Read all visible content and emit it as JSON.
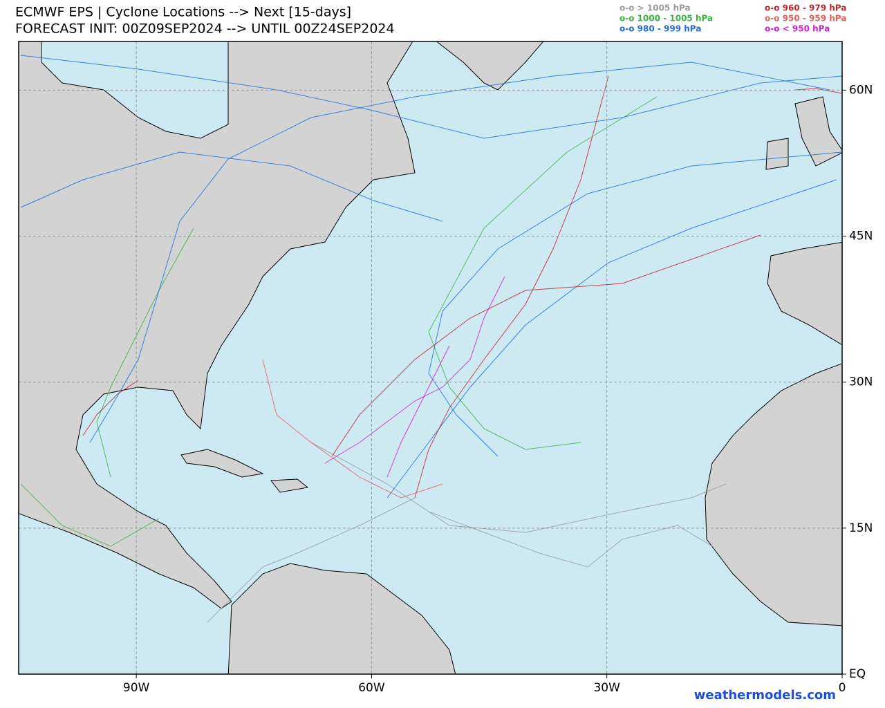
{
  "header": {
    "title": "ECMWF EPS | Cyclone Locations --> Next [15-days]",
    "subtitle": "FORECAST INIT: 00Z09SEP2024 --> UNTIL 00Z24SEP2024"
  },
  "legend": [
    {
      "label": "o-o > 1005 hPa",
      "color": "#9a9a9a"
    },
    {
      "label": "o-o 960 - 979 hPa",
      "color": "#c0262c"
    },
    {
      "label": "o-o 1000 - 1005 hPa",
      "color": "#3cb043"
    },
    {
      "label": "o-o 950 - 959 hPa",
      "color": "#e0605a"
    },
    {
      "label": "o-o 980 - 999 hPa",
      "color": "#1e6fd9"
    },
    {
      "label": "o-o < 950 hPa",
      "color": "#cc22cc"
    }
  ],
  "map": {
    "lonlim": [
      -105,
      0
    ],
    "latlim": [
      0,
      65
    ],
    "lon_ticks": [
      {
        "value": -90,
        "label": "90W"
      },
      {
        "value": -60,
        "label": "60W"
      },
      {
        "value": -30,
        "label": "30W"
      },
      0
    ],
    "lat_ticks": [
      {
        "value": 0,
        "label": "EQ"
      },
      {
        "value": 15,
        "label": "15N"
      },
      {
        "value": 30,
        "label": "30N"
      },
      {
        "value": 45,
        "label": "45N"
      },
      {
        "value": 60,
        "label": "60N"
      }
    ]
  },
  "footer": {
    "credit": "weathermodels.com"
  }
}
